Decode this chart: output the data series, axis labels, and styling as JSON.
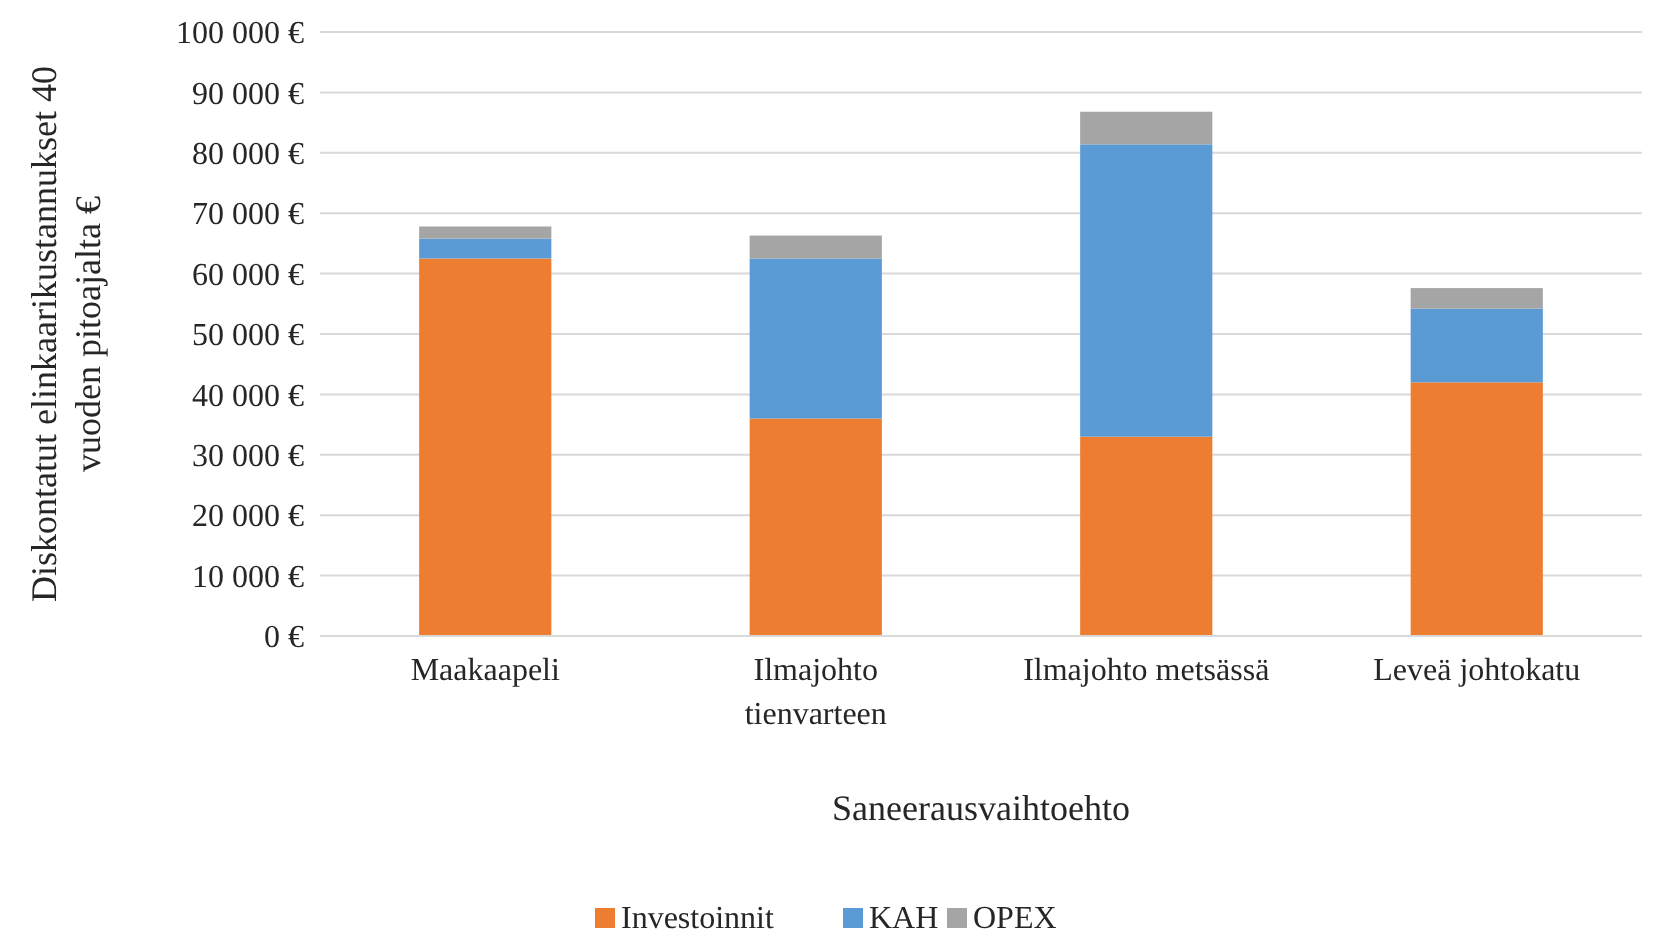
{
  "chart_data": {
    "type": "bar",
    "stacked": true,
    "xlabel": "Saneerausvaihtoehto",
    "ylabel": "Diskontatut elinkaarikustannukset 40 vuoden pitoajalta €",
    "categories": [
      "Maakaapeli",
      "Ilmajohto tienvarteen",
      "Ilmajohto metsässä",
      "Leveä johtokatu"
    ],
    "series": [
      {
        "name": "Investoinnit",
        "color": "#ed7d31",
        "values": [
          62500,
          36000,
          33000,
          42000
        ]
      },
      {
        "name": "KAH",
        "color": "#5b9bd5",
        "values": [
          3300,
          26500,
          48400,
          12200
        ]
      },
      {
        "name": "OPEX",
        "color": "#a5a5a5",
        "values": [
          2000,
          3800,
          5400,
          3400
        ]
      }
    ],
    "ylim": [
      0,
      100000
    ],
    "yticks": [
      {
        "value": 0,
        "label": "0 €"
      },
      {
        "value": 10000,
        "label": "10 000 €"
      },
      {
        "value": 20000,
        "label": "20 000 €"
      },
      {
        "value": 30000,
        "label": "30 000 €"
      },
      {
        "value": 40000,
        "label": "40 000 €"
      },
      {
        "value": 50000,
        "label": "50 000 €"
      },
      {
        "value": 60000,
        "label": "60 000 €"
      },
      {
        "value": 70000,
        "label": "70 000 €"
      },
      {
        "value": 80000,
        "label": "80 000 €"
      },
      {
        "value": 90000,
        "label": "90 000 €"
      },
      {
        "value": 100000,
        "label": "100 000 €"
      }
    ],
    "grid": "y",
    "legend": "bottom"
  }
}
